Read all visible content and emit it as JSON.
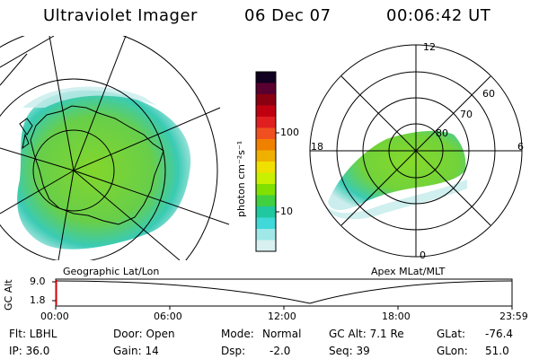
{
  "header": {
    "title": "Ultraviolet Imager",
    "date": "06 Dec 07",
    "time": "00:06:42 UT"
  },
  "colorbar": {
    "label": "photon cm⁻²s⁻¹",
    "ticks": [
      "100",
      "10"
    ],
    "colors": [
      "#120020",
      "#5a0030",
      "#8a0010",
      "#c00010",
      "#e02020",
      "#f05020",
      "#f08000",
      "#f0b000",
      "#f0e000",
      "#c8f000",
      "#80e000",
      "#40d040",
      "#20c8a0",
      "#40d8d8",
      "#a0e8e8",
      "#d8f0f0"
    ]
  },
  "left_panel": {
    "caption": "Geographic Lat/Lon"
  },
  "right_panel": {
    "caption": "Apex MLat/MLT",
    "mlt_labels": {
      "top": "12",
      "left": "18",
      "right": "6",
      "bottom": "0"
    },
    "mlat_labels": [
      "60",
      "70",
      "80"
    ]
  },
  "altitude_strip": {
    "axis_label": "GC Alt",
    "y_ticks": [
      "9.0",
      "1.8"
    ],
    "x_ticks": [
      "00:00",
      "06:00",
      "12:00",
      "18:00",
      "23:59"
    ]
  },
  "info": {
    "filter": "Flt: LBHL",
    "door": "Door: Open",
    "mode_label": "Mode:",
    "mode": "Normal",
    "gc_alt": "GC Alt: 7.1 Re",
    "glat_label": "GLat:",
    "glat": "-76.4",
    "ip": "IP: 36.0",
    "gain": "Gain: 14",
    "dsp_label": "Dsp:",
    "dsp": "-2.0",
    "seq": "Seq: 39",
    "glon_label": "GLon:",
    "glon": "51.0"
  },
  "colors": {
    "aurora_green": "#80d820",
    "aurora_cyan": "#30d0c0",
    "aurora_pale": "#c8ecec"
  }
}
